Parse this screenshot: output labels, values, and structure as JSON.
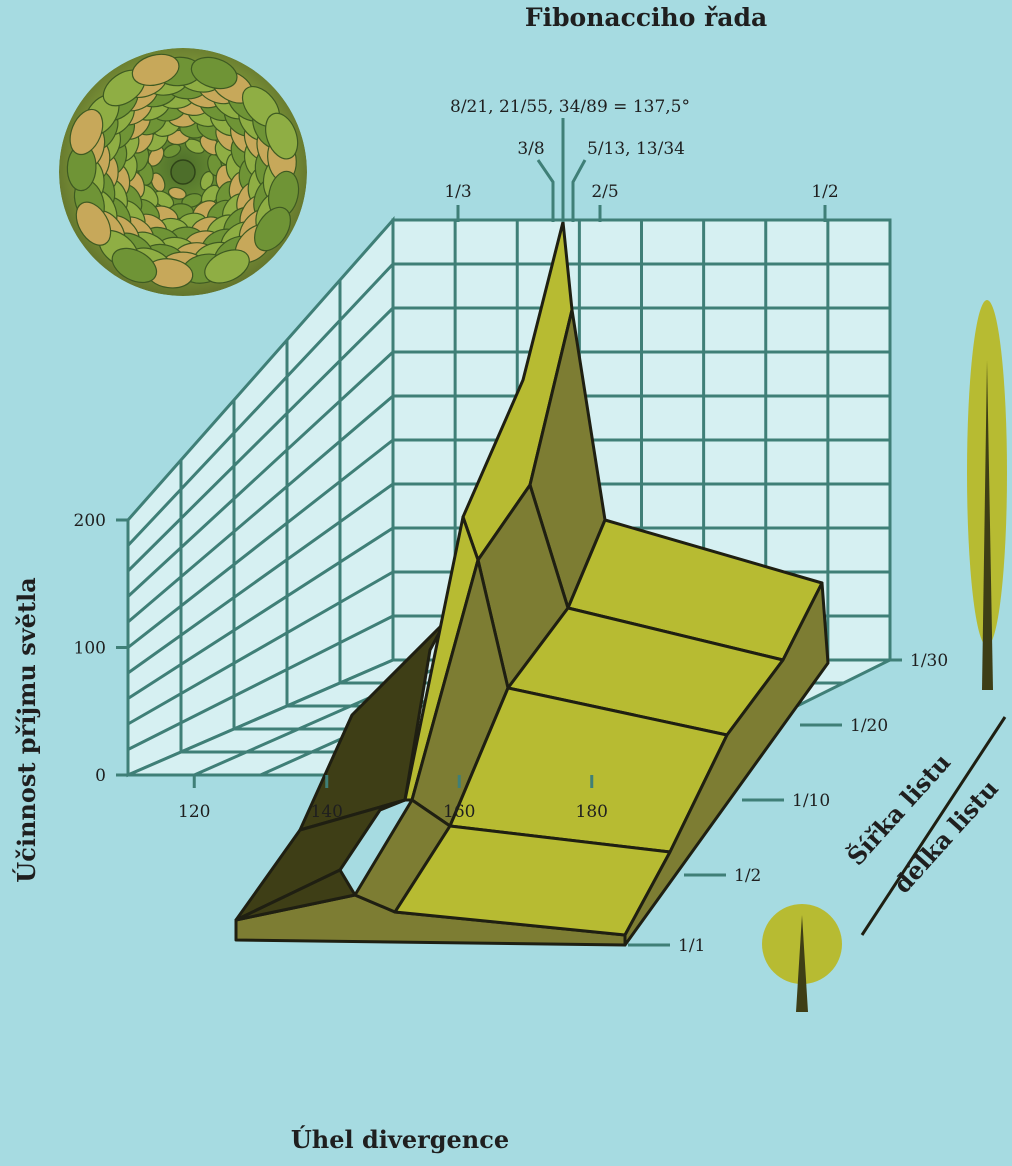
{
  "colors": {
    "background": "#a6dbe1",
    "panel": "#d6f0f2",
    "grid": "#3f7f77",
    "surface_light": "#b7bb32",
    "surface_mid": "#7d7d33",
    "surface_dark": "#3e3e16",
    "edge": "#1f1f12"
  },
  "icons": {
    "photo": "succulent-rosette-photo",
    "narrow_leaf": "narrow-leaf-icon",
    "round_leaf": "round-leaf-icon"
  },
  "chart_data": {
    "type": "surface-3d",
    "title": "Fibonacciho řada",
    "xlabel": "Úhel divergence",
    "ylabel": "Účinnost příjmu světla",
    "zlabel_numerator": "Šířka listu",
    "zlabel_denominator": "délka listu",
    "x_ticks": [
      "120",
      "140",
      "160",
      "180"
    ],
    "y_ticks": [
      "0",
      "100",
      "200"
    ],
    "z_ticks": [
      "1/1",
      "1/2",
      "1/10",
      "1/20",
      "1/30"
    ],
    "top_ticks": [
      "1/3",
      "2/5",
      "1/2"
    ],
    "annotations": {
      "golden": "8/21, 21/55, 34/89 = 137,5°",
      "left": "3/8",
      "right": "5/13, 13/34"
    },
    "grid": true
  }
}
